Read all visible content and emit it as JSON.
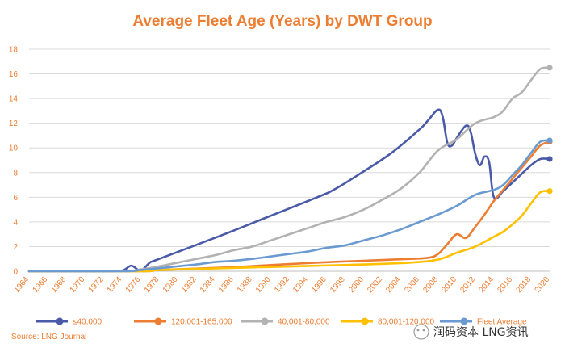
{
  "chart_data": {
    "type": "line",
    "title": "Average Fleet Age (Years) by DWT Group",
    "xlabel": "",
    "ylabel": "",
    "xlim": [
      1964,
      2020
    ],
    "ylim": [
      0,
      18
    ],
    "y_ticks": [
      0,
      2,
      4,
      6,
      8,
      10,
      12,
      14,
      16,
      18
    ],
    "x_ticks": [
      1964,
      1966,
      1968,
      1970,
      1972,
      1974,
      1976,
      1978,
      1980,
      1982,
      1984,
      1986,
      1988,
      1990,
      1992,
      1994,
      1996,
      1998,
      2000,
      2002,
      2004,
      2006,
      2008,
      2010,
      2012,
      2014,
      2016,
      2018,
      2020
    ],
    "grid": "horizontal",
    "legend_position": "bottom",
    "series": [
      {
        "name": "≤40,000",
        "color": "#4A5AA8",
        "points": [
          [
            1964,
            0
          ],
          [
            1972,
            0
          ],
          [
            1974,
            0.05
          ],
          [
            1975,
            0.45
          ],
          [
            1976,
            0.05
          ],
          [
            1977,
            0.7
          ],
          [
            1978,
            1.0
          ],
          [
            1985,
            3.0
          ],
          [
            1990,
            4.5
          ],
          [
            1995,
            6.0
          ],
          [
            1997,
            6.7
          ],
          [
            2000,
            8.1
          ],
          [
            2003,
            9.6
          ],
          [
            2006,
            11.5
          ],
          [
            2007,
            12.3
          ],
          [
            2008,
            13.1
          ],
          [
            2008.5,
            12.5
          ],
          [
            2009,
            10.4
          ],
          [
            2009.5,
            10.2
          ],
          [
            2010,
            10.8
          ],
          [
            2011,
            11.8
          ],
          [
            2011.5,
            11.3
          ],
          [
            2012,
            9.5
          ],
          [
            2012.5,
            8.6
          ],
          [
            2013,
            9.3
          ],
          [
            2013.5,
            8.8
          ],
          [
            2014,
            6.0
          ],
          [
            2015,
            6.5
          ],
          [
            2016,
            7.2
          ],
          [
            2017,
            7.9
          ],
          [
            2018,
            8.6
          ],
          [
            2019,
            9.1
          ],
          [
            2020,
            9.1
          ]
        ]
      },
      {
        "name": "120,001-165,000",
        "color": "#ED7D31",
        "points": [
          [
            1964,
            0
          ],
          [
            1976,
            0
          ],
          [
            1978,
            0.1
          ],
          [
            1985,
            0.3
          ],
          [
            1990,
            0.5
          ],
          [
            1995,
            0.7
          ],
          [
            2000,
            0.85
          ],
          [
            2005,
            1.0
          ],
          [
            2007,
            1.1
          ],
          [
            2008,
            1.4
          ],
          [
            2009,
            2.2
          ],
          [
            2010,
            3.0
          ],
          [
            2011,
            2.7
          ],
          [
            2012,
            3.6
          ],
          [
            2013,
            4.6
          ],
          [
            2014,
            5.7
          ],
          [
            2015,
            6.6
          ],
          [
            2016,
            7.5
          ],
          [
            2017,
            8.4
          ],
          [
            2018,
            9.3
          ],
          [
            2019,
            10.2
          ],
          [
            2020,
            10.5
          ]
        ]
      },
      {
        "name": "40,001-80,000",
        "color": "#B2B2B2",
        "points": [
          [
            1964,
            0
          ],
          [
            1974,
            0
          ],
          [
            1976,
            0.15
          ],
          [
            1978,
            0.4
          ],
          [
            1980,
            0.7
          ],
          [
            1982,
            1.0
          ],
          [
            1984,
            1.3
          ],
          [
            1986,
            1.7
          ],
          [
            1988,
            2.0
          ],
          [
            1990,
            2.5
          ],
          [
            1992,
            3.0
          ],
          [
            1994,
            3.5
          ],
          [
            1996,
            4.0
          ],
          [
            1998,
            4.4
          ],
          [
            2000,
            5.0
          ],
          [
            2002,
            5.8
          ],
          [
            2004,
            6.7
          ],
          [
            2006,
            8.0
          ],
          [
            2008,
            9.8
          ],
          [
            2010,
            10.7
          ],
          [
            2012,
            12.0
          ],
          [
            2014,
            12.5
          ],
          [
            2015,
            13.0
          ],
          [
            2016,
            14.0
          ],
          [
            2017,
            14.5
          ],
          [
            2018,
            15.5
          ],
          [
            2019,
            16.4
          ],
          [
            2020,
            16.5
          ]
        ]
      },
      {
        "name": "80,001-120,000",
        "color": "#FFC000",
        "points": [
          [
            1964,
            0
          ],
          [
            1976,
            0
          ],
          [
            1978,
            0.1
          ],
          [
            1985,
            0.25
          ],
          [
            1990,
            0.35
          ],
          [
            1995,
            0.45
          ],
          [
            2000,
            0.55
          ],
          [
            2005,
            0.7
          ],
          [
            2008,
            0.95
          ],
          [
            2010,
            1.5
          ],
          [
            2012,
            2.0
          ],
          [
            2014,
            2.8
          ],
          [
            2015,
            3.2
          ],
          [
            2016,
            3.8
          ],
          [
            2017,
            4.5
          ],
          [
            2018,
            5.5
          ],
          [
            2019,
            6.4
          ],
          [
            2020,
            6.5
          ]
        ]
      },
      {
        "name": "Fleet Average",
        "color": "#6A9AD0",
        "points": [
          [
            1964,
            0
          ],
          [
            1974,
            0
          ],
          [
            1976,
            0.1
          ],
          [
            1978,
            0.25
          ],
          [
            1980,
            0.4
          ],
          [
            1982,
            0.55
          ],
          [
            1984,
            0.75
          ],
          [
            1986,
            0.85
          ],
          [
            1988,
            1.0
          ],
          [
            1990,
            1.2
          ],
          [
            1992,
            1.4
          ],
          [
            1994,
            1.6
          ],
          [
            1996,
            1.9
          ],
          [
            1998,
            2.1
          ],
          [
            2000,
            2.5
          ],
          [
            2002,
            2.9
          ],
          [
            2004,
            3.4
          ],
          [
            2006,
            4.0
          ],
          [
            2008,
            4.6
          ],
          [
            2010,
            5.3
          ],
          [
            2012,
            6.2
          ],
          [
            2014,
            6.6
          ],
          [
            2015,
            7.0
          ],
          [
            2016,
            7.8
          ],
          [
            2017,
            8.6
          ],
          [
            2018,
            9.6
          ],
          [
            2019,
            10.5
          ],
          [
            2020,
            10.6
          ]
        ]
      }
    ],
    "source": "Source: LNG Journal",
    "watermark": "润码资本 LNG资讯"
  }
}
